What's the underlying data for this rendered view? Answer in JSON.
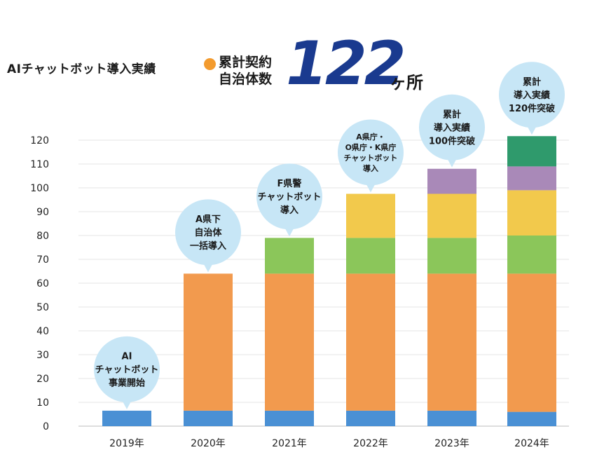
{
  "header": {
    "title": "AIチャットボット導入実績",
    "legend_line1": "累計契約",
    "legend_line2": "自治体数",
    "total": "122",
    "unit": "ヶ所"
  },
  "colors": {
    "accent_orange": "#f39b2e",
    "accent_navy": "#1a3a8f",
    "bubble": "#c7e6f6",
    "segments": [
      "#4a90d4",
      "#f29a4e",
      "#8bc65a",
      "#f2c94c",
      "#a989b8",
      "#2f9a6c"
    ]
  },
  "chart_data": {
    "type": "bar",
    "stacked": true,
    "categories": [
      "2019年",
      "2020年",
      "2021年",
      "2022年",
      "2023年",
      "2024年"
    ],
    "yticks": [
      0,
      10,
      20,
      30,
      40,
      50,
      60,
      70,
      80,
      90,
      100,
      110,
      120
    ],
    "ylim": [
      0,
      122
    ],
    "grid": true,
    "segments": [
      [
        6.5
      ],
      [
        6.5,
        57.5
      ],
      [
        6.5,
        57.5,
        15
      ],
      [
        6.5,
        57.5,
        15,
        18.5
      ],
      [
        6.5,
        57.5,
        15,
        18.5,
        10.5
      ],
      [
        6,
        58,
        16,
        19,
        10,
        12.7
      ]
    ],
    "annotations": [
      [
        "AI",
        "チャットボット",
        "事業開始"
      ],
      [
        "A県下",
        "自治体",
        "一括導入"
      ],
      [
        "F県警",
        "チャットボット",
        "導入"
      ],
      [
        "A県庁・",
        "O県庁・K県庁",
        "チャットボット",
        "導入"
      ],
      [
        "累計",
        "導入実績",
        "100件突破"
      ],
      [
        "累計",
        "導入実績",
        "120件突破"
      ]
    ]
  }
}
